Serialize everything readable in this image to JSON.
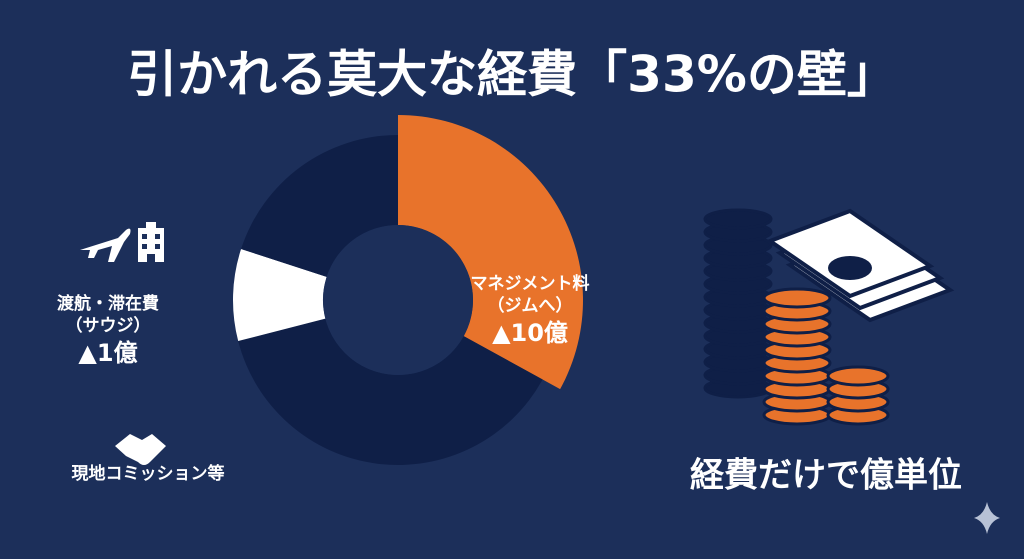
{
  "chart_data": {
    "type": "donut",
    "title": "引かれる莫大な経費「33%の壁」",
    "categories": [
      [
        "マネジメント料",
        "（ジムへ）"
      ],
      [
        "現地コミッション等"
      ],
      [
        "渡航・滞在費",
        "（サウジ）"
      ],
      null
    ],
    "values": [
      33,
      38,
      9,
      20
    ],
    "amounts": [
      "▲10億",
      null,
      "▲1億",
      null
    ],
    "colors": [
      "#e8732b",
      "#0f1f47",
      "#ffffff",
      "#0f1f47"
    ],
    "caption": "経費だけで億単位"
  }
}
